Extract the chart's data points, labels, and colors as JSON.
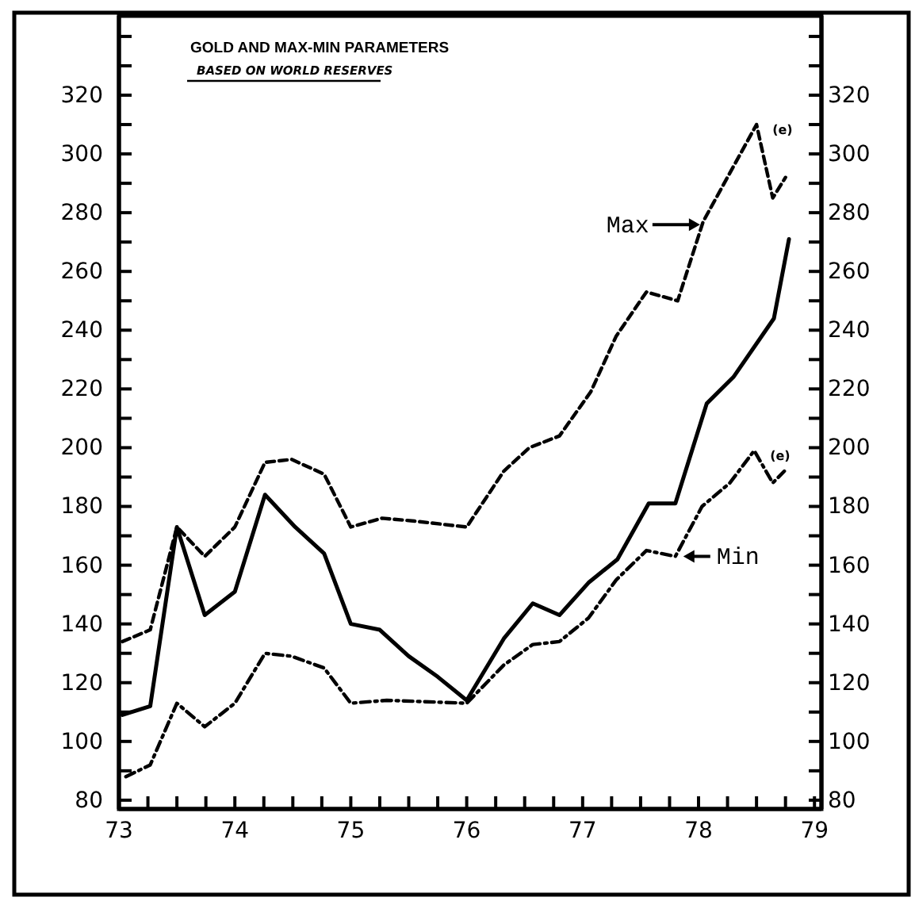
{
  "chart_data": {
    "type": "line",
    "title": "GOLD AND MAX-MIN PARAMETERS",
    "subtitle": "BASED ON WORLD RESERVES",
    "xlim": [
      73,
      79.06
    ],
    "xticks": [
      73,
      {
        "value": 73.25,
        "label": null
      },
      {
        "value": 73.5,
        "label": null
      },
      {
        "value": 73.75,
        "label": null
      },
      74,
      {
        "value": 74.25,
        "label": null
      },
      {
        "value": 74.5,
        "label": null
      },
      {
        "value": 74.75,
        "label": null
      },
      75,
      {
        "value": 75.25,
        "label": null
      },
      {
        "value": 75.5,
        "label": null
      },
      {
        "value": 75.75,
        "label": null
      },
      76,
      {
        "value": 76.25,
        "label": null
      },
      {
        "value": 76.5,
        "label": null
      },
      {
        "value": 76.75,
        "label": null
      },
      77,
      {
        "value": 77.25,
        "label": null
      },
      {
        "value": 77.5,
        "label": null
      },
      {
        "value": 77.75,
        "label": null
      },
      78,
      {
        "value": 78.25,
        "label": null
      },
      {
        "value": 78.5,
        "label": null
      },
      {
        "value": 78.75,
        "label": null
      },
      79
    ],
    "ylim": [
      77,
      347
    ],
    "yticks": [
      80,
      {
        "value": 90,
        "label": null
      },
      100,
      {
        "value": 110,
        "label": null
      },
      120,
      {
        "value": 130,
        "label": null
      },
      140,
      {
        "value": 150,
        "label": null
      },
      160,
      {
        "value": 170,
        "label": null
      },
      180,
      {
        "value": 190,
        "label": null
      },
      200,
      {
        "value": 210,
        "label": null
      },
      220,
      {
        "value": 230,
        "label": null
      },
      240,
      {
        "value": 250,
        "label": null
      },
      260,
      {
        "value": 270,
        "label": null
      },
      280,
      {
        "value": 290,
        "label": null
      },
      300,
      {
        "value": 310,
        "label": null
      },
      320,
      {
        "value": 330,
        "label": null
      },
      {
        "value": 340,
        "label": null
      }
    ],
    "y2lim": [
      77,
      347
    ],
    "y2ticks": [
      80,
      {
        "value": 90,
        "label": null
      },
      100,
      {
        "value": 110,
        "label": null
      },
      120,
      {
        "value": 130,
        "label": null
      },
      140,
      {
        "value": 150,
        "label": null
      },
      160,
      {
        "value": 170,
        "label": null
      },
      180,
      {
        "value": 190,
        "label": null
      },
      200,
      {
        "value": 210,
        "label": null
      },
      220,
      {
        "value": 230,
        "label": null
      },
      240,
      {
        "value": 250,
        "label": null
      },
      260,
      {
        "value": 270,
        "label": null
      },
      280,
      {
        "value": 290,
        "label": null
      },
      300,
      {
        "value": 310,
        "label": null
      },
      320,
      {
        "value": 330,
        "label": null
      },
      {
        "value": 340,
        "label": null
      }
    ],
    "grid": false,
    "series": [
      {
        "color": "#000000",
        "line_style": "solid",
        "x": [
          73.03,
          73.27,
          73.5,
          73.74,
          74.0,
          74.26,
          74.52,
          74.77,
          75.0,
          75.25,
          75.5,
          75.75,
          76.0,
          76.32,
          76.57,
          76.8,
          77.05,
          77.3,
          77.57,
          77.8,
          78.07,
          78.3,
          78.65,
          78.78
        ],
        "values": [
          109,
          112,
          173,
          143,
          151,
          184,
          173,
          164,
          140,
          138,
          129,
          122,
          114,
          135,
          147,
          143,
          154,
          162,
          181,
          181,
          215,
          224,
          244,
          271
        ]
      },
      {
        "name": "Max",
        "color": "#000000",
        "line_style": "dashed",
        "x": [
          73.03,
          73.27,
          73.5,
          73.74,
          74.0,
          74.26,
          74.49,
          74.77,
          75.0,
          75.27,
          75.55,
          76.0,
          76.32,
          76.54,
          76.8,
          77.07,
          77.29,
          77.55,
          77.82,
          78.04,
          78.5,
          78.64,
          78.75
        ],
        "values": [
          134,
          138,
          173,
          163,
          173,
          195,
          196,
          191,
          173,
          176,
          175,
          173,
          192,
          200,
          204,
          219,
          238,
          253,
          250,
          277,
          310,
          285,
          292
        ]
      },
      {
        "name": "Min",
        "color": "#000000",
        "line_style": "dotted",
        "x": [
          73.06,
          73.27,
          73.5,
          73.74,
          74.0,
          74.26,
          74.49,
          74.77,
          75.0,
          75.31,
          76.0,
          76.32,
          76.57,
          76.8,
          77.05,
          77.29,
          77.55,
          77.8,
          78.03,
          78.27,
          78.48,
          78.64,
          78.74
        ],
        "values": [
          88,
          92,
          113,
          105,
          113,
          130,
          129,
          125,
          113,
          114,
          113,
          126,
          133,
          134,
          142,
          155,
          165,
          163,
          180,
          188,
          199,
          188,
          192
        ]
      }
    ],
    "annotations": [
      "(e)",
      "(e)"
    ]
  }
}
